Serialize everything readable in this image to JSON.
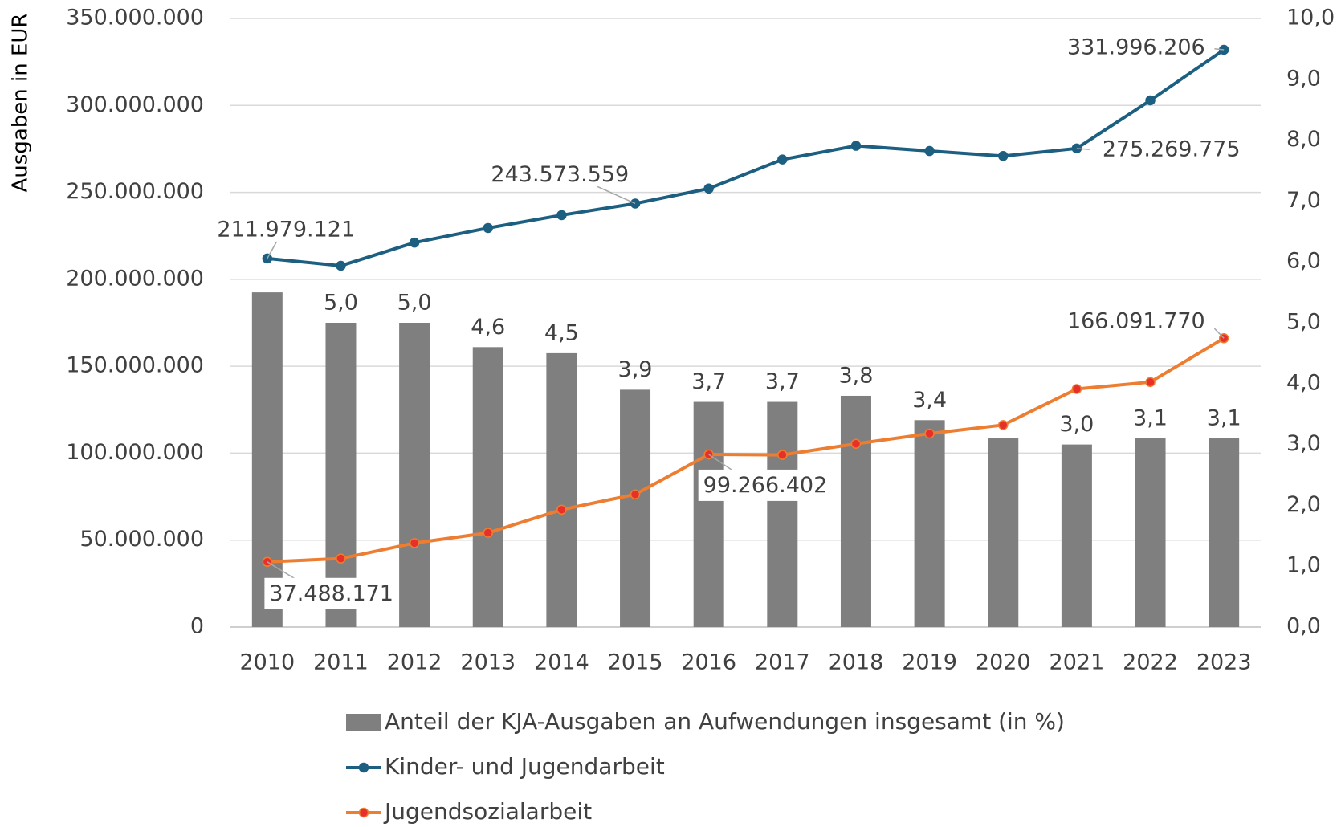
{
  "chart_data": {
    "type": "bar",
    "y_label": "Ausgaben in EUR",
    "categories": [
      "2010",
      "2011",
      "2012",
      "2013",
      "2014",
      "2015",
      "2016",
      "2017",
      "2018",
      "2019",
      "2020",
      "2021",
      "2022",
      "2023"
    ],
    "ylim": [
      0,
      350000000
    ],
    "yticks": [
      0,
      {
        "value": 50000000,
        "label": "50.000.000"
      },
      {
        "value": 100000000,
        "label": "100.000.000"
      },
      {
        "value": 150000000,
        "label": "150.000.000"
      },
      {
        "value": 200000000,
        "label": "200.000.000"
      },
      {
        "value": 250000000,
        "label": "250.000.000"
      },
      {
        "value": 300000000,
        "label": "300.000.000"
      },
      {
        "value": 350000000,
        "label": "350.000.000"
      }
    ],
    "y2lim": [
      0,
      10
    ],
    "y2ticks": [
      {
        "value": 0,
        "label": "0,0"
      },
      {
        "value": 1,
        "label": "1,0"
      },
      {
        "value": 2,
        "label": "2,0"
      },
      {
        "value": 3,
        "label": "3,0"
      },
      {
        "value": 4,
        "label": "4,0"
      },
      {
        "value": 5,
        "label": "5,0"
      },
      {
        "value": 6,
        "label": "6,0"
      },
      {
        "value": 7,
        "label": "7,0"
      },
      {
        "value": 8,
        "label": "8,0"
      },
      {
        "value": 9,
        "label": "9,0"
      },
      {
        "value": 10,
        "label": "10,0"
      }
    ],
    "grid": true,
    "series": [
      {
        "name": "Anteil der KJA-Ausgaben an Aufwendungen insgesamt (in %)",
        "type": "bar",
        "axis": "y2",
        "color": "#7f7f7f",
        "values": [
          5.5,
          5.0,
          5.0,
          4.6,
          4.5,
          3.9,
          3.7,
          3.7,
          3.8,
          3.4,
          3.1,
          3.0,
          3.1,
          3.1
        ],
        "value_labels": [
          null,
          "5,0",
          "5,0",
          "4,6",
          "4,5",
          "3,9",
          "3,7",
          "3,7",
          "3,8",
          "3,4",
          null,
          "3,0",
          "3,1",
          "3,1"
        ]
      },
      {
        "name": "Kinder- und Jugendarbeit",
        "type": "line",
        "color": "#1c5f80",
        "marker_color": "#1c5f80",
        "values": [
          211979121,
          207800000,
          221100000,
          229500000,
          236900000,
          243573559,
          252200000,
          268900000,
          276800000,
          273800000,
          270900000,
          275269775,
          302900000,
          331996206
        ],
        "value_labels": [
          "211.979.121",
          null,
          null,
          null,
          null,
          "243.573.559",
          null,
          null,
          null,
          null,
          null,
          "275.269.775",
          null,
          "331.996.206"
        ]
      },
      {
        "name": "Jugendsozialarbeit",
        "type": "line",
        "color": "#ed7d31",
        "marker_color": "#e8302a",
        "values": [
          37488171,
          39400000,
          48300000,
          54200000,
          67500000,
          76300000,
          99266402,
          99000000,
          105400000,
          111300000,
          116200000,
          136900000,
          140900000,
          166091770
        ],
        "value_labels": [
          "37.488.171",
          null,
          null,
          null,
          null,
          null,
          "99.266.402",
          null,
          null,
          null,
          null,
          null,
          null,
          "166.091.770"
        ]
      }
    ]
  }
}
